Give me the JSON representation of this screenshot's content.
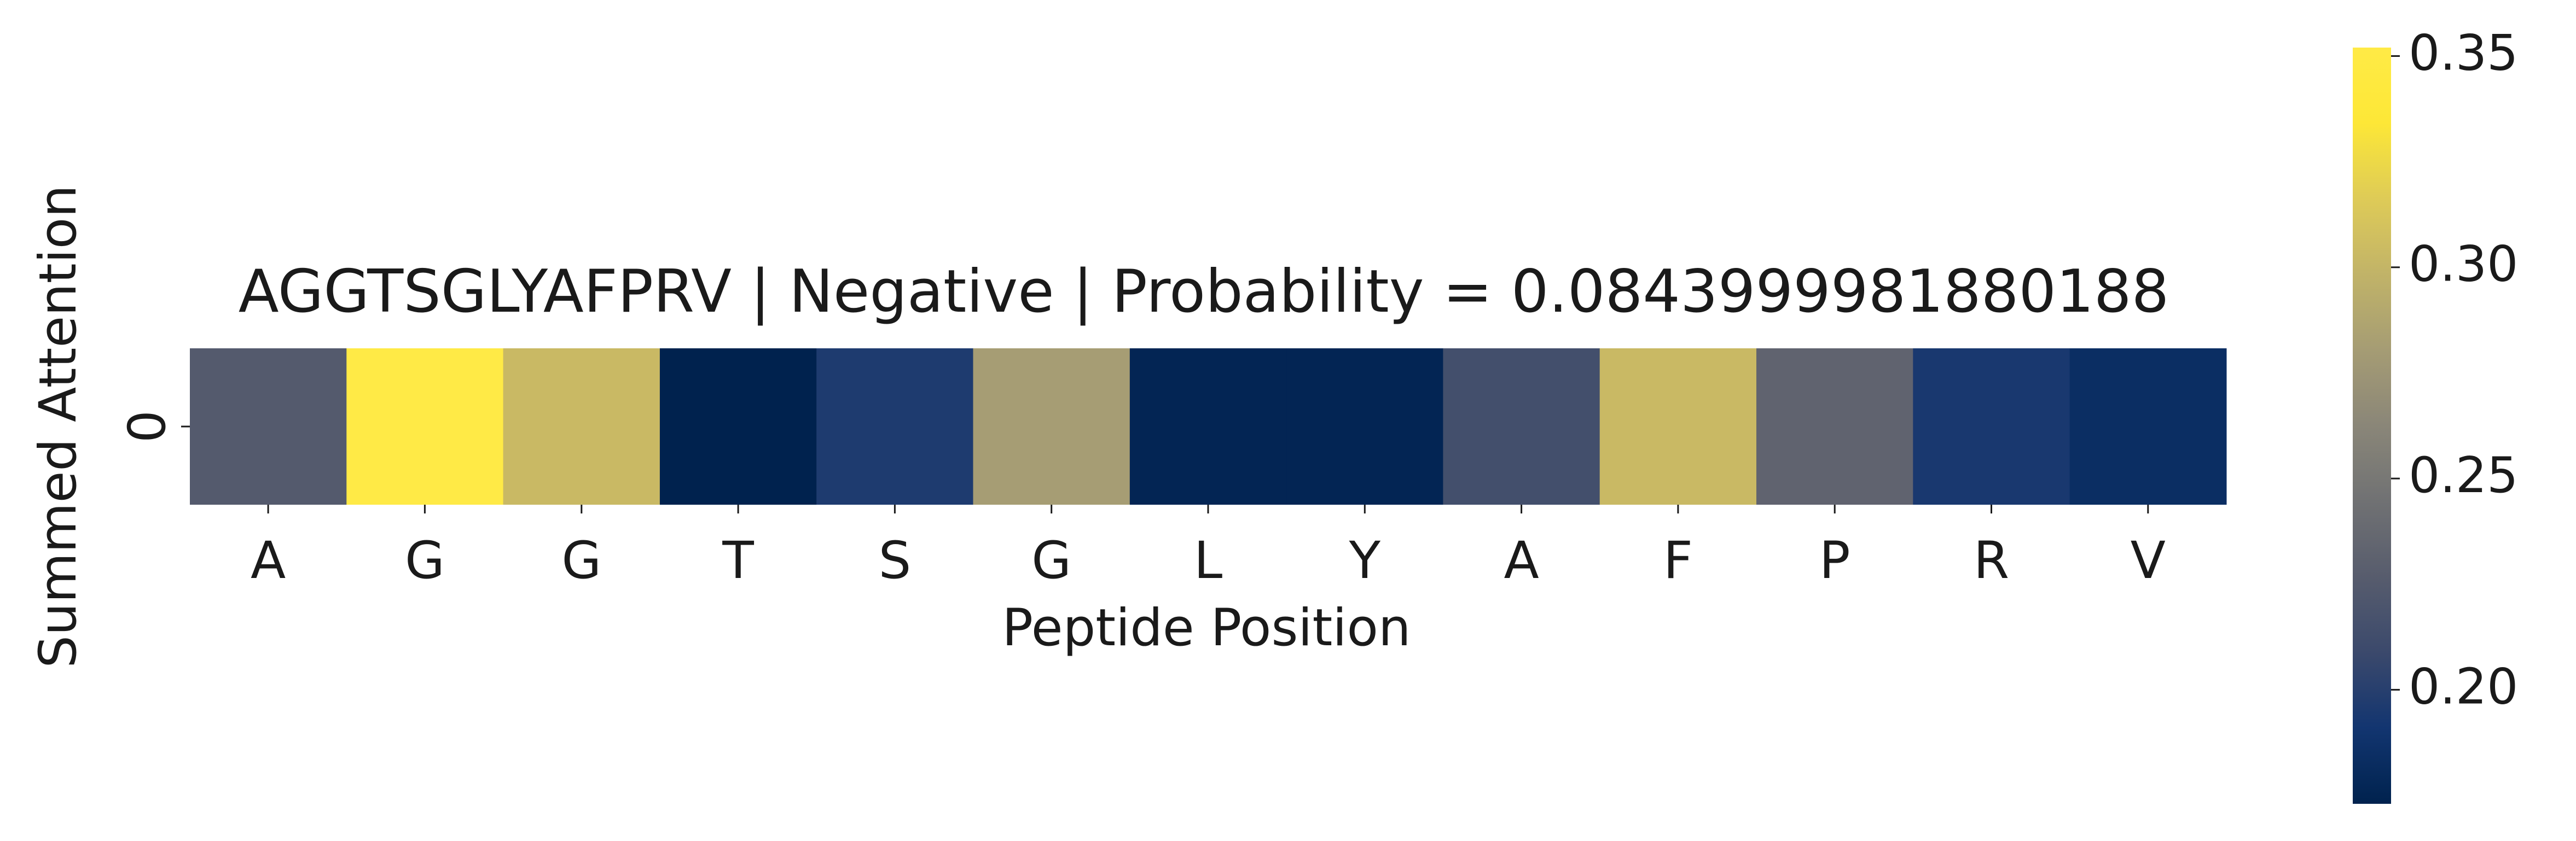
{
  "chart_data": {
    "type": "heatmap",
    "title": "AGGTSGLYAFPRV | Negative | Probability = 0.0843999981880188",
    "xlabel": "Peptide Position",
    "ylabel": "Summed Attention",
    "row_labels": [
      "0"
    ],
    "categories": [
      "A",
      "G",
      "G",
      "T",
      "S",
      "G",
      "L",
      "Y",
      "A",
      "F",
      "P",
      "R",
      "V"
    ],
    "values": [
      0.225,
      0.352,
      0.303,
      0.173,
      0.196,
      0.281,
      0.176,
      0.176,
      0.214,
      0.303,
      0.233,
      0.194,
      0.184
    ],
    "colormap": "cividis",
    "colorbar": {
      "vmin": 0.173,
      "vmax": 0.352,
      "ticks": [
        0.2,
        0.25,
        0.3,
        0.35
      ],
      "tick_labels": [
        "0.20",
        "0.25",
        "0.30",
        "0.35"
      ]
    },
    "grid": false,
    "legend": "colorbar-right"
  }
}
